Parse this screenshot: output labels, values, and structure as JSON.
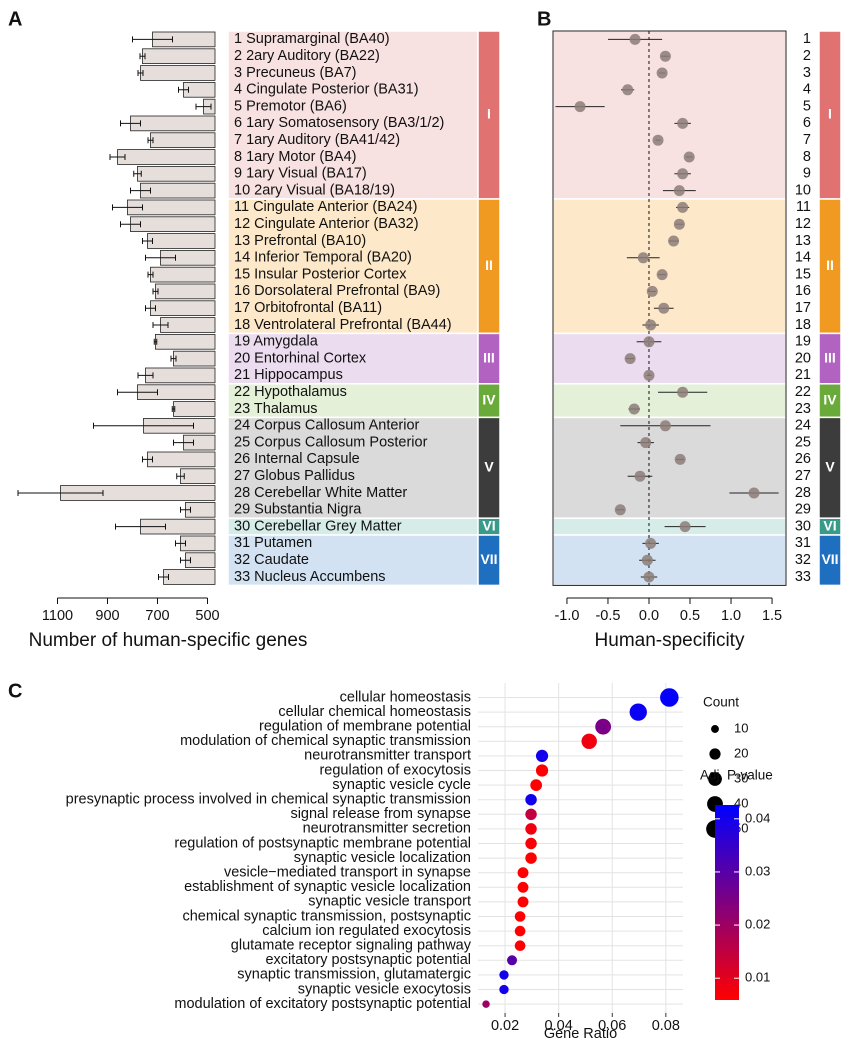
{
  "panel_labels": [
    "A",
    "B",
    "C"
  ],
  "chart_data": [
    {
      "type": "bar",
      "orientation": "horizontal",
      "color": "#e6dedb",
      "xlim": [
        1290,
        470
      ],
      "xticks": [
        1100,
        900,
        700,
        500
      ],
      "xlabel": "Number of human-specific genes",
      "groups": [
        {
          "name": "I",
          "color": "#e07272",
          "background": "#f8e1e1",
          "categories": [
            "1  Supramarginal (BA40)",
            "2  2ary Auditory (BA22)",
            "3  Precuneus (BA7)",
            "4  Cingulate Posterior (BA31)",
            "5  Premotor (BA6)",
            "6  1ary Somatosensory (BA3/1/2)",
            "7  1ary Auditory (BA41/42)",
            "8  1ary Motor (BA4)",
            "9  1ary Visual (BA17)",
            "10  2ary Visual (BA18/19)"
          ],
          "values": [
            720,
            760,
            768,
            596,
            516,
            808,
            728,
            860,
            780,
            768
          ],
          "errors": [
            80,
            10,
            10,
            20,
            30,
            40,
            10,
            30,
            15,
            40
          ]
        },
        {
          "name": "II",
          "color": "#f09a22",
          "background": "#fde9c9",
          "categories": [
            "11  Cingulate Anterior (BA24)",
            "12  Cingulate Anterior (BA32)",
            "13  Prefrontal (BA10)",
            "14  Inferior Temporal (BA20)",
            "15  Insular Posterior Cortex",
            "16  Dorsolateral Prefrontal (BA9)",
            "17  Orbitofrontal (BA11)",
            "18  Ventrolateral Prefrontal (BA44)"
          ],
          "values": [
            820,
            808,
            740,
            688,
            728,
            708,
            728,
            688
          ],
          "errors": [
            60,
            40,
            20,
            60,
            10,
            10,
            20,
            30
          ]
        },
        {
          "name": "III",
          "color": "#b263c2",
          "background": "#ecdcef",
          "categories": [
            "19  Amygdala",
            "20  Entorhinal Cortex",
            "21  Hippocampus"
          ],
          "values": [
            708,
            636,
            748
          ],
          "errors": [
            5,
            10,
            30
          ]
        },
        {
          "name": "IV",
          "color": "#6aaa3a",
          "background": "#e4f0d8",
          "categories": [
            "22  Hypothalamus",
            "23  Thalamus"
          ],
          "values": [
            780,
            636
          ],
          "errors": [
            80,
            5
          ]
        },
        {
          "name": "V",
          "color": "#3c3c3c",
          "background": "#dadada",
          "categories": [
            "24  Corpus Callosum Anterior",
            "25  Corpus Callosum Posterior",
            "26  Internal Capsule",
            "27  Globus Pallidus",
            "28  Cerebellar White Matter",
            "29  Substantia Nigra"
          ],
          "values": [
            756,
            596,
            740,
            608,
            1088,
            588
          ],
          "errors": [
            200,
            40,
            20,
            15,
            170,
            20
          ]
        },
        {
          "name": "VI",
          "color": "#3a9a8a",
          "background": "#d5ece8",
          "categories": [
            "30  Cerebellar Grey Matter"
          ],
          "values": [
            768
          ],
          "errors": [
            100
          ]
        },
        {
          "name": "VII",
          "color": "#1f6fc0",
          "background": "#d2e2f2",
          "categories": [
            "31  Putamen",
            "32  Caudate",
            "33  Nucleus Accumbens"
          ],
          "values": [
            608,
            588,
            676
          ],
          "errors": [
            20,
            20,
            20
          ]
        }
      ]
    },
    {
      "type": "dotplot",
      "color": "#8c7c78",
      "xlim": [
        -1.17,
        1.67
      ],
      "xticks": [
        {
          "value": -1,
          "label": "-1.0"
        },
        -0.5,
        {
          "value": 0,
          "label": "0.0"
        },
        0.5,
        {
          "value": 1,
          "label": "1.0"
        },
        1.5
      ],
      "xlabel": "Human-specificity",
      "reference_line": 0,
      "groups": [
        {
          "name": "I",
          "color": "#e07272",
          "background": "#f8e1e1",
          "categories": [
            "1",
            "2",
            "3",
            "4",
            "5",
            "6",
            "7",
            "8",
            "9",
            "10"
          ],
          "values": [
            -0.17,
            0.2,
            0.16,
            -0.26,
            -0.84,
            0.41,
            0.11,
            0.49,
            0.41,
            0.37
          ],
          "errors": [
            0.33,
            0.05,
            0.04,
            0.08,
            0.3,
            0.1,
            0.03,
            0.04,
            0.1,
            0.2
          ]
        },
        {
          "name": "II",
          "color": "#f09a22",
          "background": "#fde9c9",
          "categories": [
            "11",
            "12",
            "13",
            "14",
            "15",
            "16",
            "17",
            "18"
          ],
          "values": [
            0.41,
            0.37,
            0.3,
            -0.07,
            0.16,
            0.04,
            0.18,
            0.02
          ],
          "errors": [
            0.08,
            0.05,
            0.06,
            0.2,
            0.05,
            0.05,
            0.12,
            0.1
          ]
        },
        {
          "name": "III",
          "color": "#b263c2",
          "background": "#ecdcef",
          "categories": [
            "19",
            "20",
            "21"
          ],
          "values": [
            0,
            -0.23,
            0
          ],
          "errors": [
            0.15,
            0.05,
            0.03
          ]
        },
        {
          "name": "IV",
          "color": "#6aaa3a",
          "background": "#e4f0d8",
          "categories": [
            "22",
            "23"
          ],
          "values": [
            0.41,
            -0.18
          ],
          "errors": [
            0.3,
            0.07
          ]
        },
        {
          "name": "V",
          "color": "#3c3c3c",
          "background": "#dadada",
          "categories": [
            "24",
            "25",
            "26",
            "27",
            "28",
            "29"
          ],
          "values": [
            0.2,
            -0.04,
            0.38,
            -0.11,
            1.28,
            -0.35
          ],
          "errors": [
            0.55,
            0.1,
            0.05,
            0.15,
            0.3,
            0.05
          ]
        },
        {
          "name": "VI",
          "color": "#3a9a8a",
          "background": "#d5ece8",
          "categories": [
            "30"
          ],
          "values": [
            0.44
          ],
          "errors": [
            0.25
          ]
        },
        {
          "name": "VII",
          "color": "#1f6fc0",
          "background": "#d2e2f2",
          "categories": [
            "31",
            "32",
            "33"
          ],
          "values": [
            0.02,
            -0.02,
            0
          ],
          "errors": [
            0.1,
            0.1,
            0.1
          ]
        }
      ]
    },
    {
      "type": "bubble",
      "xlim": [
        0.0099,
        0.0864
      ],
      "xticks": [
        0.02,
        0.04,
        0.06,
        0.08
      ],
      "xlabel": "Gene Ratio",
      "grid": true,
      "categories": [
        "cellular homeostasis",
        "cellular chemical homeostasis",
        "regulation of membrane potential",
        "modulation of chemical synaptic transmission",
        "neurotransmitter transport",
        "regulation of exocytosis",
        "synaptic vesicle cycle",
        "presynaptic process involved in chemical synaptic transmission",
        "signal release from synapse",
        "neurotransmitter secretion",
        "regulation of postsynaptic membrane potential",
        "synaptic vesicle localization",
        "vesicle−mediated transport in synapse",
        "establishment of synaptic vesicle localization",
        "synaptic vesicle transport",
        "chemical synaptic transmission, postsynaptic",
        "calcium ion regulated exocytosis",
        "glutamate receptor signaling pathway",
        "excitatory postsynaptic potential",
        "synaptic transmission, glutamatergic",
        "synaptic vesicle exocytosis",
        "modulation of excitatory postsynaptic potential"
      ],
      "values": [
        0.0813,
        0.0697,
        0.0566,
        0.0514,
        0.0338,
        0.0338,
        0.0316,
        0.0297,
        0.0297,
        0.0297,
        0.0297,
        0.0297,
        0.0267,
        0.0267,
        0.0267,
        0.0256,
        0.0256,
        0.0256,
        0.0226,
        0.0196,
        0.0196,
        0.0129
      ],
      "sizes": [
        55,
        48,
        40,
        38,
        24,
        24,
        22,
        21,
        21,
        21,
        21,
        21,
        19,
        19,
        19,
        18,
        18,
        18,
        16,
        14,
        14,
        9
      ],
      "pvalues": [
        0.042,
        0.041,
        0.025,
        0.008,
        0.04,
        0.005,
        0.005,
        0.04,
        0.015,
        0.008,
        0.007,
        0.006,
        0.006,
        0.006,
        0.006,
        0.006,
        0.005,
        0.006,
        0.03,
        0.04,
        0.04,
        0.02
      ],
      "size_legend": {
        "title": "Count",
        "values": [
          10,
          20,
          30,
          40,
          50
        ]
      },
      "color_legend": {
        "title": "Adj. P-value",
        "lim": [
          0.0059,
          0.0426
        ],
        "ticks": [
          0.01,
          0.02,
          0.03,
          0.04
        ],
        "low_color": "#ff0000",
        "high_color": "#0000ff"
      }
    }
  ]
}
